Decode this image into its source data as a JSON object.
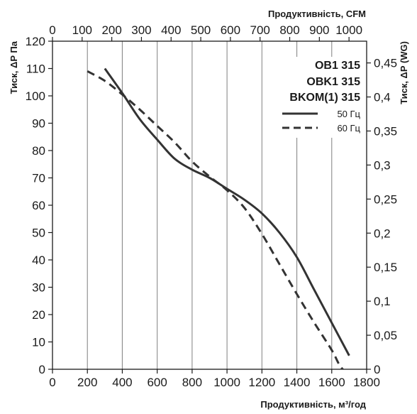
{
  "chart_data": {
    "type": "line",
    "models": [
      "OB1 315",
      "OBK1 315",
      "BKOM(1) 315"
    ],
    "x_bottom": {
      "label": "Продуктивність, м³/год",
      "range": [
        0,
        1800
      ],
      "ticks": [
        0,
        200,
        400,
        600,
        800,
        1000,
        1200,
        1400,
        1600,
        1800
      ]
    },
    "x_top": {
      "label": "Продуктивність, CFM",
      "ticks": [
        0,
        100,
        200,
        300,
        400,
        500,
        600,
        700,
        800,
        900,
        1000
      ]
    },
    "y_left": {
      "label": "Тиск, ΔP Па",
      "range": [
        0,
        120
      ],
      "ticks": [
        0,
        10,
        20,
        30,
        40,
        50,
        60,
        70,
        80,
        90,
        100,
        110,
        120
      ]
    },
    "y_right": {
      "label": "Тиск, ΔP (WG)",
      "ticks": [
        "0",
        "0,05",
        "0,1",
        "0,15",
        "0,2",
        "0,25",
        "0,3",
        "0,35",
        "0,4",
        "0,45"
      ]
    },
    "grid": "vertical",
    "legend_position": "top-right",
    "series": [
      {
        "name": "50 Гц",
        "style": "solid",
        "color": "#333333",
        "points": [
          [
            300,
            110
          ],
          [
            400,
            101
          ],
          [
            500,
            91.5
          ],
          [
            600,
            84
          ],
          [
            700,
            77
          ],
          [
            800,
            73
          ],
          [
            900,
            70
          ],
          [
            1000,
            66
          ],
          [
            1100,
            62
          ],
          [
            1200,
            57
          ],
          [
            1300,
            50
          ],
          [
            1400,
            41
          ],
          [
            1500,
            29
          ],
          [
            1600,
            17
          ],
          [
            1700,
            5
          ]
        ]
      },
      {
        "name": "60 Гц",
        "style": "dashed",
        "color": "#333333",
        "points": [
          [
            200,
            109
          ],
          [
            300,
            105.5
          ],
          [
            400,
            100.5
          ],
          [
            500,
            95
          ],
          [
            600,
            89
          ],
          [
            700,
            83
          ],
          [
            800,
            76
          ],
          [
            900,
            70.5
          ],
          [
            1000,
            65.5
          ],
          [
            1100,
            59
          ],
          [
            1200,
            49.5
          ],
          [
            1300,
            38.5
          ],
          [
            1400,
            27.5
          ],
          [
            1500,
            17
          ],
          [
            1600,
            7
          ],
          [
            1650,
            1
          ],
          [
            1700,
            -2
          ]
        ]
      }
    ]
  }
}
